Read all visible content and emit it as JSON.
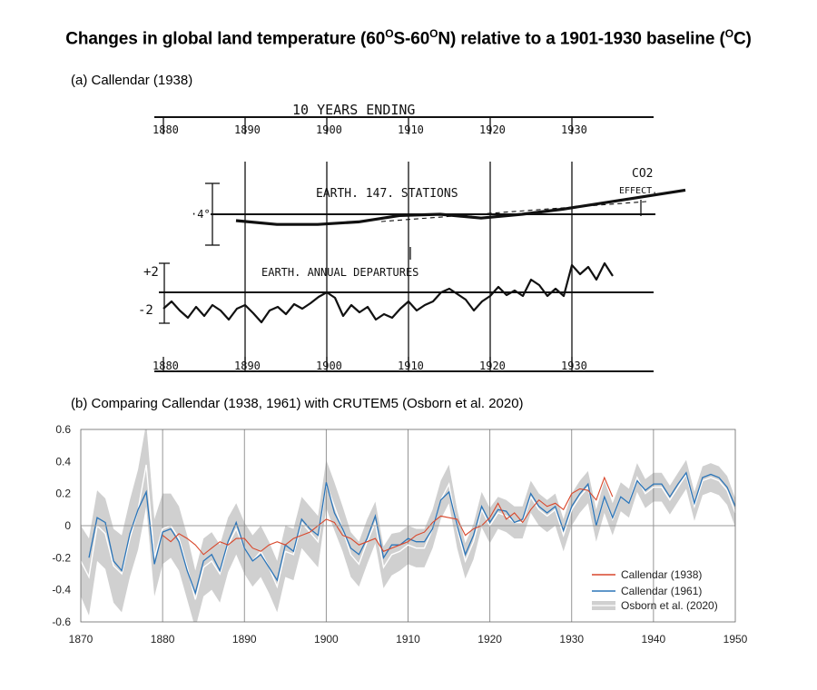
{
  "title": {
    "prefix": "Changes in global land temperature (60",
    "deg1": "O",
    "mid1": "S-60",
    "deg2": "O",
    "mid2": "N) relative to a 1901-1930 baseline (",
    "deg3": "O",
    "suffix": "C)"
  },
  "panel_a": {
    "label": "(a) Callendar (1938)",
    "header": "10 YEARS  ENDING",
    "top_axis_labels": [
      "1880",
      "1890",
      "1900",
      "1910",
      "1920",
      "1930"
    ],
    "bottom_axis_labels": [
      "1880",
      "1890",
      "1900",
      "1910",
      "1920",
      "1930"
    ],
    "curve1_label": "EARTH. 147. STATIONS",
    "curve2_label": "EARTH. ANNUAL DEPARTURES",
    "co2_label": "CO2",
    "effect_label": "EFFECT.",
    "scale_small": "·4°",
    "scale_plus": "+2",
    "scale_minus": "-2"
  },
  "panel_b": {
    "label": "(b) Comparing Callendar (1938, 1961) with CRUTEM5 (Osborn et al. 2020)"
  },
  "chart_data": [
    {
      "type": "line",
      "title": "Callendar (1938)",
      "note": "scanned hand-drawn figure; values in °C, years on x",
      "x_ticks": [
        1880,
        1890,
        1900,
        1910,
        1920,
        1930
      ],
      "series": [
        {
          "name": "EARTH. 147. STATIONS",
          "x": [
            1880,
            1885,
            1890,
            1895,
            1900,
            1905,
            1910,
            1915,
            1920,
            1925,
            1930,
            1935
          ],
          "values": [
            -0.05,
            -0.08,
            -0.08,
            -0.06,
            -0.01,
            0.0,
            -0.03,
            0.0,
            0.04,
            0.09,
            0.14,
            0.19
          ]
        },
        {
          "name": "EARTH. ANNUAL DEPARTURES",
          "x": [
            1880,
            1881,
            1882,
            1883,
            1884,
            1885,
            1886,
            1887,
            1888,
            1889,
            1890,
            1891,
            1892,
            1893,
            1894,
            1895,
            1896,
            1897,
            1898,
            1899,
            1900,
            1901,
            1902,
            1903,
            1904,
            1905,
            1906,
            1907,
            1908,
            1909,
            1910,
            1911,
            1912,
            1913,
            1914,
            1915,
            1916,
            1917,
            1918,
            1919,
            1920,
            1921,
            1922,
            1923,
            1924,
            1925,
            1926,
            1927,
            1928,
            1929,
            1930,
            1931,
            1932,
            1933,
            1934,
            1935
          ],
          "values": [
            -0.1,
            -0.02,
            -0.12,
            -0.2,
            -0.08,
            -0.18,
            -0.06,
            -0.12,
            -0.22,
            -0.1,
            -0.06,
            -0.15,
            -0.25,
            -0.12,
            -0.08,
            -0.16,
            -0.05,
            -0.1,
            -0.04,
            0.03,
            0.08,
            0.02,
            -0.18,
            -0.06,
            -0.14,
            -0.08,
            -0.22,
            -0.16,
            -0.2,
            -0.1,
            -0.02,
            -0.12,
            -0.06,
            -0.02,
            0.08,
            0.12,
            0.06,
            0.0,
            -0.12,
            -0.02,
            0.04,
            0.14,
            0.05,
            0.1,
            0.04,
            0.22,
            0.16,
            0.04,
            0.12,
            0.04,
            0.38,
            0.28,
            0.36,
            0.22,
            0.4,
            0.26
          ]
        }
      ]
    },
    {
      "type": "line",
      "title": "",
      "xlabel": "",
      "ylabel": "",
      "xlim": [
        1870,
        1950
      ],
      "ylim": [
        -0.6,
        0.6
      ],
      "x_ticks": [
        1870,
        1880,
        1890,
        1900,
        1910,
        1920,
        1930,
        1940,
        1950
      ],
      "y_ticks": [
        "-0.6",
        "-0.4",
        "-0.2",
        "0",
        "0.2",
        "0.4",
        "0.6"
      ],
      "legend_position": "bottom-right",
      "series": [
        {
          "name": "Callendar (1938)",
          "color": "#d9472b",
          "x": [
            1880,
            1881,
            1882,
            1883,
            1884,
            1885,
            1886,
            1887,
            1888,
            1889,
            1890,
            1891,
            1892,
            1893,
            1894,
            1895,
            1896,
            1897,
            1898,
            1899,
            1900,
            1901,
            1902,
            1903,
            1904,
            1905,
            1906,
            1907,
            1908,
            1909,
            1910,
            1911,
            1912,
            1913,
            1914,
            1915,
            1916,
            1917,
            1918,
            1919,
            1920,
            1921,
            1922,
            1923,
            1924,
            1925,
            1926,
            1927,
            1928,
            1929,
            1930,
            1931,
            1932,
            1933,
            1934,
            1935
          ],
          "values": [
            -0.06,
            -0.1,
            -0.05,
            -0.08,
            -0.12,
            -0.18,
            -0.14,
            -0.1,
            -0.12,
            -0.08,
            -0.08,
            -0.14,
            -0.16,
            -0.12,
            -0.1,
            -0.12,
            -0.08,
            -0.06,
            -0.04,
            0.0,
            0.04,
            0.02,
            -0.06,
            -0.08,
            -0.12,
            -0.1,
            -0.08,
            -0.16,
            -0.14,
            -0.12,
            -0.1,
            -0.06,
            -0.04,
            0.02,
            0.06,
            0.05,
            0.04,
            -0.06,
            -0.02,
            0.0,
            0.05,
            0.14,
            0.04,
            0.08,
            0.02,
            0.1,
            0.16,
            0.12,
            0.14,
            0.1,
            0.2,
            0.23,
            0.22,
            0.16,
            0.3,
            0.18
          ]
        },
        {
          "name": "Callendar (1961)",
          "color": "#2c75b8",
          "x": [
            1871,
            1872,
            1873,
            1874,
            1875,
            1876,
            1877,
            1878,
            1879,
            1880,
            1881,
            1882,
            1883,
            1884,
            1885,
            1886,
            1887,
            1888,
            1889,
            1890,
            1891,
            1892,
            1893,
            1894,
            1895,
            1896,
            1897,
            1898,
            1899,
            1900,
            1901,
            1902,
            1903,
            1904,
            1905,
            1906,
            1907,
            1908,
            1909,
            1910,
            1911,
            1912,
            1913,
            1914,
            1915,
            1916,
            1917,
            1918,
            1919,
            1920,
            1921,
            1922,
            1923,
            1924,
            1925,
            1926,
            1927,
            1928,
            1929,
            1930,
            1931,
            1932,
            1933,
            1934,
            1935,
            1936,
            1937,
            1938,
            1939,
            1940,
            1941,
            1942,
            1943,
            1944,
            1945,
            1946,
            1947,
            1948,
            1949,
            1950
          ],
          "values": [
            -0.2,
            0.05,
            0.02,
            -0.22,
            -0.28,
            -0.05,
            0.1,
            0.21,
            -0.24,
            -0.04,
            -0.02,
            -0.1,
            -0.28,
            -0.42,
            -0.22,
            -0.18,
            -0.28,
            -0.1,
            0.02,
            -0.14,
            -0.22,
            -0.18,
            -0.26,
            -0.34,
            -0.12,
            -0.16,
            0.04,
            -0.02,
            -0.06,
            0.27,
            0.08,
            -0.02,
            -0.14,
            -0.18,
            -0.08,
            0.06,
            -0.2,
            -0.12,
            -0.12,
            -0.08,
            -0.1,
            -0.1,
            -0.02,
            0.16,
            0.21,
            0.0,
            -0.18,
            -0.06,
            0.12,
            0.02,
            0.1,
            0.09,
            0.02,
            0.04,
            0.2,
            0.12,
            0.08,
            0.12,
            -0.03,
            0.12,
            0.2,
            0.26,
            0.0,
            0.18,
            0.05,
            0.18,
            0.14,
            0.28,
            0.22,
            0.26,
            0.26,
            0.18,
            0.26,
            0.33,
            0.14,
            0.3,
            0.32,
            0.3,
            0.24,
            0.12
          ]
        },
        {
          "name": "Osborn et al. (2020)",
          "color": "#d0d0d0",
          "x": [
            1870,
            1871,
            1872,
            1873,
            1874,
            1875,
            1876,
            1877,
            1878,
            1879,
            1880,
            1881,
            1882,
            1883,
            1884,
            1885,
            1886,
            1887,
            1888,
            1889,
            1890,
            1891,
            1892,
            1893,
            1894,
            1895,
            1896,
            1897,
            1898,
            1899,
            1900,
            1901,
            1902,
            1903,
            1904,
            1905,
            1906,
            1907,
            1908,
            1909,
            1910,
            1911,
            1912,
            1913,
            1914,
            1915,
            1916,
            1917,
            1918,
            1919,
            1920,
            1921,
            1922,
            1923,
            1924,
            1925,
            1926,
            1927,
            1928,
            1929,
            1930,
            1931,
            1932,
            1933,
            1934,
            1935,
            1936,
            1937,
            1938,
            1939,
            1940,
            1941,
            1942,
            1943,
            1944,
            1945,
            1946,
            1947,
            1948,
            1949,
            1950
          ],
          "values": [
            -0.22,
            -0.32,
            0.0,
            -0.05,
            -0.25,
            -0.3,
            -0.08,
            0.1,
            0.38,
            -0.2,
            -0.02,
            0.0,
            -0.08,
            -0.26,
            -0.46,
            -0.26,
            -0.22,
            -0.3,
            -0.12,
            -0.02,
            -0.14,
            -0.22,
            -0.16,
            -0.26,
            -0.38,
            -0.16,
            -0.18,
            0.02,
            -0.04,
            -0.1,
            0.26,
            0.12,
            -0.02,
            -0.18,
            -0.24,
            -0.1,
            0.02,
            -0.26,
            -0.18,
            -0.16,
            -0.12,
            -0.14,
            -0.14,
            -0.02,
            0.16,
            0.26,
            -0.02,
            -0.22,
            -0.1,
            0.1,
            0.0,
            0.08,
            0.06,
            0.02,
            0.02,
            0.18,
            0.1,
            0.06,
            0.1,
            -0.06,
            0.1,
            0.18,
            0.24,
            0.0,
            0.18,
            0.04,
            0.18,
            0.14,
            0.3,
            0.2,
            0.24,
            0.24,
            0.16,
            0.24,
            0.32,
            0.12,
            0.28,
            0.3,
            0.28,
            0.22,
            0.08
          ],
          "uncertainty_halfwidth": [
            0.22,
            0.24,
            0.22,
            0.22,
            0.23,
            0.24,
            0.24,
            0.25,
            0.26,
            0.24,
            0.22,
            0.2,
            0.2,
            0.2,
            0.18,
            0.18,
            0.18,
            0.18,
            0.17,
            0.16,
            0.16,
            0.16,
            0.16,
            0.16,
            0.16,
            0.16,
            0.16,
            0.16,
            0.16,
            0.16,
            0.15,
            0.15,
            0.14,
            0.14,
            0.14,
            0.14,
            0.13,
            0.13,
            0.13,
            0.12,
            0.12,
            0.12,
            0.12,
            0.12,
            0.12,
            0.12,
            0.12,
            0.11,
            0.11,
            0.11,
            0.11,
            0.1,
            0.1,
            0.1,
            0.1,
            0.1,
            0.1,
            0.1,
            0.1,
            0.1,
            0.1,
            0.1,
            0.1,
            0.1,
            0.1,
            0.1,
            0.09,
            0.09,
            0.09,
            0.09,
            0.09,
            0.09,
            0.09,
            0.09,
            0.09,
            0.09,
            0.09,
            0.09,
            0.09,
            0.09,
            0.09
          ]
        }
      ]
    }
  ]
}
